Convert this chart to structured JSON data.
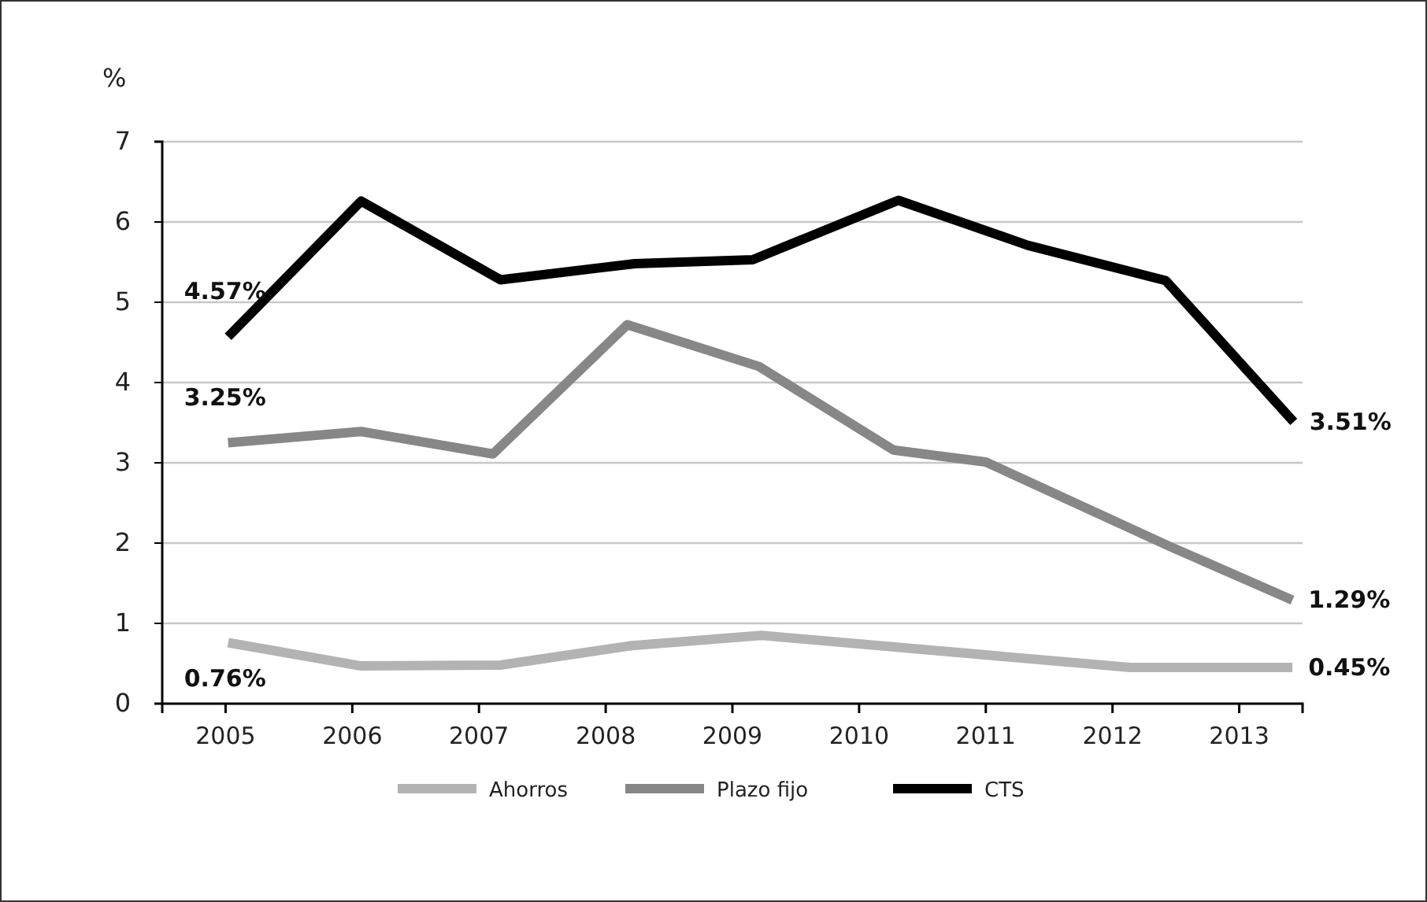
{
  "chart_data": {
    "type": "line",
    "ylabel": "%",
    "xlim": [
      2004.5,
      2013.5
    ],
    "xticks": [
      2005,
      2006,
      2007,
      2008,
      2009,
      2010,
      2011,
      2012,
      2013
    ],
    "ylim": [
      0,
      7
    ],
    "yticks": [
      0,
      1,
      2,
      3,
      4,
      5,
      6,
      7
    ],
    "grid": "y",
    "legend": "bottom",
    "marker": "none",
    "line_style": "solid",
    "series": [
      {
        "name": "Ahorros",
        "color": "#b3b3b3",
        "x": [
          2005.02,
          2006.07,
          2007.17,
          2008.19,
          2009.23,
          2012.14,
          2013.42
        ],
        "values": [
          0.76,
          0.47,
          0.48,
          0.72,
          0.85,
          0.45,
          0.45
        ],
        "value_labels": [
          "0.76%",
          null,
          null,
          null,
          null,
          null,
          "0.45%"
        ]
      },
      {
        "name": "Plazo fijo",
        "color": "#878787",
        "x": [
          2005.02,
          2006.07,
          2007.11,
          2008.17,
          2009.21,
          2010.27,
          2011.0,
          2012.45,
          2013.42
        ],
        "values": [
          3.25,
          3.39,
          3.11,
          4.72,
          4.2,
          3.16,
          3.01,
          1.96,
          1.29
        ],
        "value_labels": [
          "3.25%",
          null,
          null,
          null,
          null,
          null,
          null,
          null,
          "1.29%"
        ]
      },
      {
        "name": "CTS",
        "color": "#000000",
        "x": [
          2005.02,
          2006.07,
          2007.17,
          2008.23,
          2009.16,
          2010.31,
          2011.33,
          2012.42,
          2013.43
        ],
        "values": [
          4.57,
          6.26,
          5.28,
          5.48,
          5.53,
          6.27,
          5.71,
          5.27,
          3.51
        ],
        "value_labels": [
          "4.57%",
          null,
          null,
          null,
          null,
          null,
          null,
          null,
          "3.51%"
        ]
      }
    ]
  }
}
